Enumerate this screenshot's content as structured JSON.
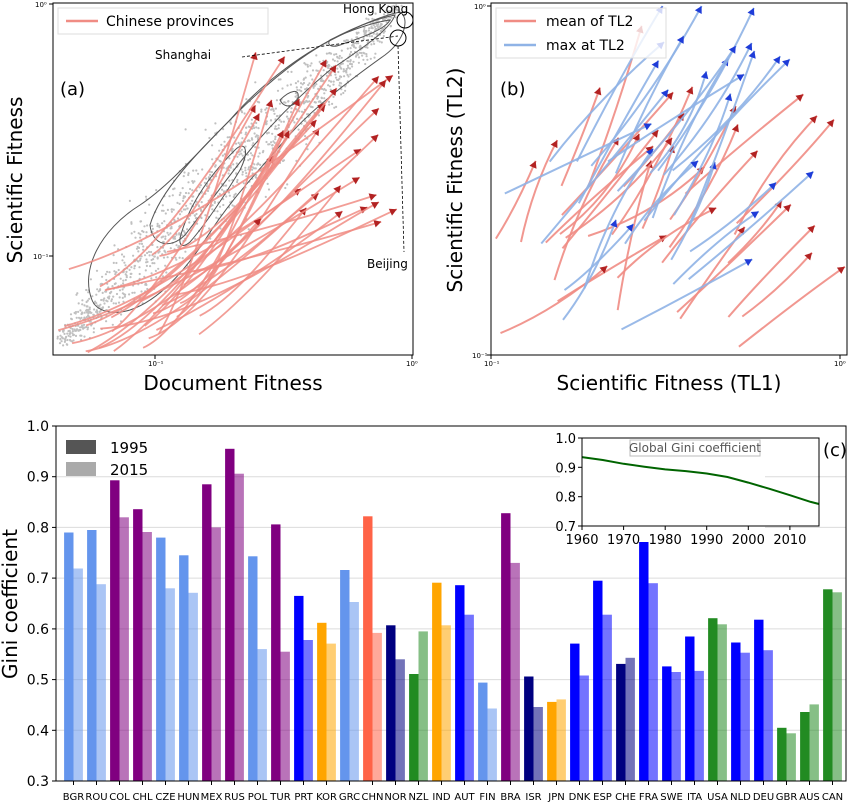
{
  "panels": {
    "a": {
      "label": "(a)",
      "xlabel": "Document Fitness",
      "ylabel": "Scientific Fitness",
      "legend": "Chinese provinces",
      "legend_color": "#f08c84",
      "x_ticks": [
        "10⁻¹",
        "10⁰"
      ],
      "y_ticks": [
        "10⁰",
        "10⁻¹"
      ],
      "annotations": [
        "Hong Kong",
        "Shanghai",
        "Beijing"
      ],
      "xscale": "log",
      "yscale": "log"
    },
    "b": {
      "label": "(b)",
      "xlabel": "Scientific Fitness (TL1)",
      "ylabel": "Scientific Fitness (TL2)",
      "legend_mean": "mean of TL2",
      "legend_max": "max at TL2",
      "mean_color": "#f08c84",
      "max_color": "#8fb3e6",
      "x_ticks": [
        "10⁻¹",
        "10⁰"
      ],
      "y_ticks": [
        "10⁰",
        "10⁻¹"
      ],
      "xscale": "log",
      "yscale": "log"
    }
  },
  "chart_data": [
    {
      "type": "bar",
      "panel": "(c)",
      "ylabel": "Gini coefficient",
      "ylim": [
        0.3,
        1.0
      ],
      "y_ticks": [
        "1.0",
        "0.9",
        "0.8",
        "0.7",
        "0.6",
        "0.5",
        "0.4",
        "0.3"
      ],
      "legend": [
        "1995",
        "2015"
      ],
      "categories": [
        "BGR",
        "ROU",
        "COL",
        "CHL",
        "CZE",
        "HUN",
        "MEX",
        "RUS",
        "POL",
        "TUR",
        "PRT",
        "KOR",
        "GRC",
        "CHN",
        "NOR",
        "NZL",
        "IND",
        "AUT",
        "FIN",
        "BRA",
        "ISR",
        "JPN",
        "DNK",
        "ESP",
        "CHE",
        "FRA",
        "SWE",
        "ITA",
        "USA",
        "NLD",
        "DEU",
        "GBR",
        "AUS",
        "CAN"
      ],
      "colors": [
        "#6495ed",
        "#6495ed",
        "#800080",
        "#800080",
        "#6495ed",
        "#6495ed",
        "#800080",
        "#800080",
        "#6495ed",
        "#800080",
        "#0000ff",
        "#ffa500",
        "#6495ed",
        "#ff6347",
        "#000080",
        "#228b22",
        "#ffa500",
        "#0000ff",
        "#6495ed",
        "#800080",
        "#000080",
        "#ffa500",
        "#0000ff",
        "#0000ff",
        "#000080",
        "#0000ff",
        "#0000ff",
        "#0000ff",
        "#228b22",
        "#0000ff",
        "#0000ff",
        "#228b22",
        "#228b22",
        "#228b22"
      ],
      "series": [
        {
          "name": "1995",
          "values": [
            0.79,
            0.795,
            0.893,
            0.836,
            0.78,
            0.745,
            0.885,
            0.955,
            0.743,
            0.806,
            0.665,
            0.612,
            0.716,
            0.822,
            0.607,
            0.511,
            0.691,
            0.686,
            0.494,
            0.828,
            0.506,
            0.456,
            0.571,
            0.695,
            0.531,
            0.778,
            0.526,
            0.585,
            0.621,
            0.573,
            0.618,
            0.405,
            0.436,
            0.678
          ]
        },
        {
          "name": "2015",
          "values": [
            0.719,
            0.688,
            0.82,
            0.791,
            0.68,
            0.671,
            0.8,
            0.906,
            0.56,
            0.555,
            0.578,
            0.571,
            0.653,
            0.592,
            0.54,
            0.595,
            0.607,
            0.628,
            0.443,
            0.73,
            0.446,
            0.461,
            0.508,
            0.628,
            0.543,
            0.69,
            0.515,
            0.517,
            0.609,
            0.553,
            0.558,
            0.394,
            0.451,
            0.672
          ]
        }
      ]
    },
    {
      "type": "line",
      "title": "Global Gini coefficient",
      "x": [
        1960,
        1965,
        1970,
        1975,
        1980,
        1985,
        1990,
        1995,
        2000,
        2005,
        2010,
        2015,
        2017
      ],
      "y": [
        0.935,
        0.925,
        0.912,
        0.902,
        0.893,
        0.887,
        0.879,
        0.867,
        0.848,
        0.827,
        0.805,
        0.782,
        0.775
      ],
      "xlim": [
        1960,
        2017
      ],
      "ylim": [
        0.7,
        1.0
      ],
      "x_ticks": [
        "1960",
        "1970",
        "1980",
        "1990",
        "2000",
        "2010"
      ],
      "y_ticks": [
        "1.0",
        "0.9",
        "0.8",
        "0.7"
      ],
      "color": "#006400"
    }
  ]
}
